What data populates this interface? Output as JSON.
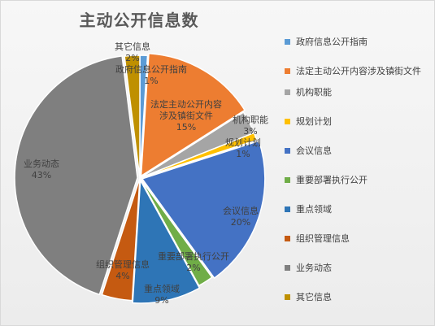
{
  "chart_data": {
    "type": "pie",
    "title": "主动公开信息数",
    "slices": [
      {
        "name": "政府信息公开指南",
        "percent_label": "1%",
        "value": 1,
        "color": "#5B9BD5"
      },
      {
        "name": "法定主动公开内容涉及镇街文件",
        "name_in_chart": "法定主动公开内容涉及镇街文件",
        "percent_label": "15%",
        "value": 15,
        "color": "#ED7D31"
      },
      {
        "name": "机构职能",
        "percent_label": "3%",
        "value": 3,
        "color": "#A5A5A5"
      },
      {
        "name": "规划计划",
        "percent_label": "1%",
        "value": 1,
        "color": "#FFC000"
      },
      {
        "name": "会议信息",
        "percent_label": "20%",
        "value": 20,
        "color": "#4472C4"
      },
      {
        "name": "重要部署执行公开",
        "percent_label": "2%",
        "value": 2,
        "color": "#70AD47"
      },
      {
        "name": "重点领域",
        "percent_label": "9%",
        "value": 9,
        "color": "#2E75B6"
      },
      {
        "name": "组织管理信息",
        "percent_label": "4%",
        "value": 4,
        "color": "#C55A11"
      },
      {
        "name": "业务动态",
        "percent_label": "43%",
        "value": 43,
        "color": "#7F7F7F"
      },
      {
        "name": "其它信息",
        "percent_label": "2%",
        "value": 2,
        "color": "#BF9000"
      }
    ],
    "legend_position": "right"
  }
}
